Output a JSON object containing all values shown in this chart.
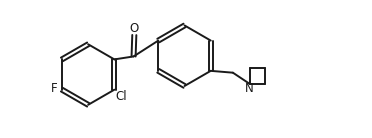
{
  "bg_color": "#ffffff",
  "line_color": "#1a1a1a",
  "line_width": 1.4,
  "font_size": 8.5,
  "figsize": [
    3.72,
    1.38
  ],
  "dpi": 100,
  "xlim": [
    0.0,
    9.5
  ],
  "ylim": [
    0.5,
    4.2
  ]
}
